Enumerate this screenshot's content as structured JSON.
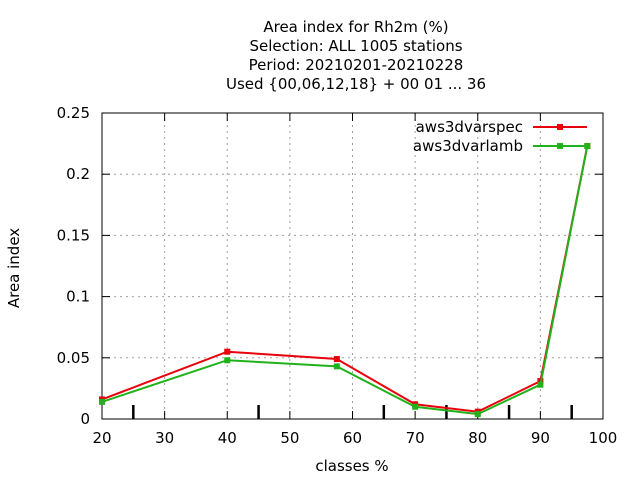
{
  "chart_data": {
    "type": "line",
    "title_lines": [
      "Area index  for Rh2m (%)",
      "Selection: ALL   1005 stations",
      "Period: 20210201-20210228",
      "Used {00,06,12,18} + 00 01 ... 36"
    ],
    "xlabel": "classes %",
    "ylabel": "Area index",
    "xlim": [
      20,
      100
    ],
    "ylim": [
      0,
      0.25
    ],
    "xticks": [
      "20",
      "30",
      "40",
      "50",
      "60",
      "70",
      "80",
      "90",
      "100"
    ],
    "yticks": [
      "0",
      "0.05",
      "0.1",
      "0.15",
      "0.2",
      "0.25"
    ],
    "grid": true,
    "legend_position": "top-right",
    "series": [
      {
        "name": "aws3dvarspec",
        "color": "#e8000b",
        "x": [
          20,
          40,
          57.5,
          70,
          80,
          90,
          97.5
        ],
        "y": [
          0.016,
          0.055,
          0.049,
          0.012,
          0.006,
          0.031,
          0.223
        ]
      },
      {
        "name": "aws3dvarlamb",
        "color": "#21b21a",
        "x": [
          20,
          40,
          57.5,
          70,
          80,
          90,
          97.5
        ],
        "y": [
          0.014,
          0.048,
          0.043,
          0.01,
          0.004,
          0.028,
          0.223
        ]
      }
    ],
    "bottom_markers": [
      25,
      45,
      65,
      75,
      85,
      95
    ]
  }
}
